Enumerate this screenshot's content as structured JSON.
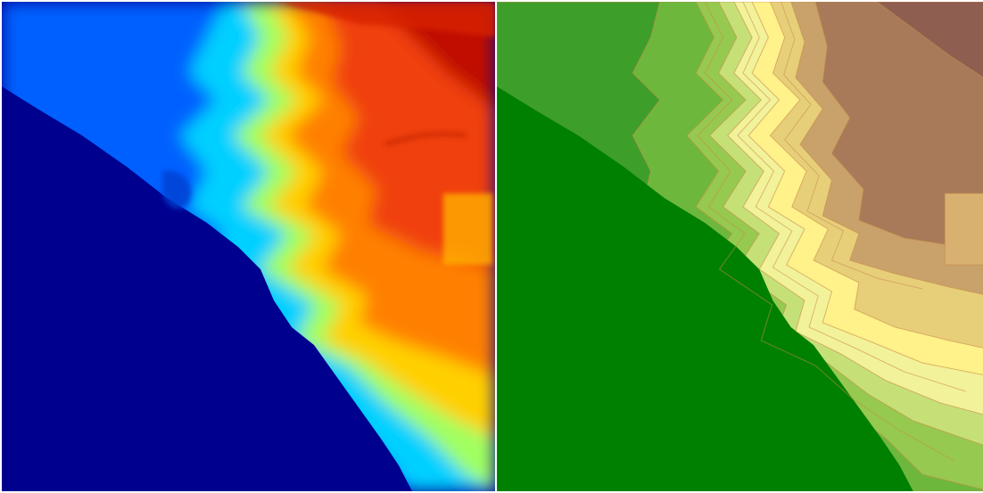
{
  "panels": [
    {
      "id": "elevation-heatmap",
      "style": "jet-colormap"
    },
    {
      "id": "contour-terrain-map",
      "style": "hypsometric-tint"
    }
  ],
  "colors": {
    "jet": [
      "#00008f",
      "#0010c8",
      "#0050ff",
      "#0090ff",
      "#00d0ff",
      "#40ffc0",
      "#a0ff60",
      "#ffe000",
      "#ff9000",
      "#ff4a10",
      "#e02800",
      "#b40000"
    ],
    "hypsometric": [
      "#008000",
      "#3e9e2a",
      "#6db83c",
      "#96c94f",
      "#c6e078",
      "#f2f29a",
      "#fff28a",
      "#e7cf7a",
      "#c8a26a",
      "#a87a5a",
      "#9a6a54",
      "#8e5e50"
    ],
    "contour_line": "#c88a4a"
  }
}
